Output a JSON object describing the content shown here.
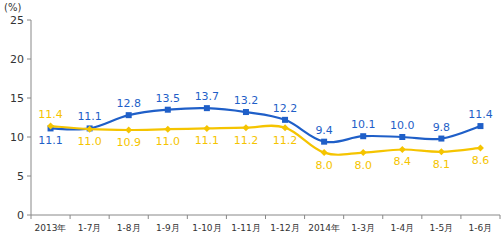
{
  "chart_data": {
    "type": "line",
    "y_label": "(%)",
    "categories": [
      "2013年",
      "1-7月",
      "1-8月",
      "1-9月",
      "1-10月",
      "1-11月",
      "1-12月",
      "2014年",
      "1-3月",
      "1-4月",
      "1-5月",
      "1-6月"
    ],
    "series": [
      {
        "color": "#1f5fc8",
        "marker": "square",
        "line_style": "solid",
        "values": [
          11.1,
          11.1,
          12.8,
          13.5,
          13.7,
          13.2,
          12.2,
          9.4,
          10.1,
          10.0,
          9.8,
          11.4
        ],
        "value_labels": [
          "11.1",
          "11.1",
          "12.8",
          "13.5",
          "13.7",
          "13.2",
          "12.2",
          "9.4",
          "10.1",
          "10.0",
          "9.8",
          "11.4"
        ]
      },
      {
        "color": "#f5c400",
        "marker": "diamond",
        "line_style": "solid",
        "values": [
          11.4,
          11.0,
          10.9,
          11.0,
          11.1,
          11.2,
          11.2,
          8.0,
          8.0,
          8.4,
          8.1,
          8.6
        ],
        "value_labels": [
          "11.4",
          "11.0",
          "10.9",
          "11.0",
          "11.1",
          "11.2",
          "11.2",
          "8.0",
          "8.0",
          "8.4",
          "8.1",
          "8.6"
        ]
      }
    ],
    "ylim": [
      0,
      25
    ],
    "yticks": [
      0,
      5,
      10,
      15,
      20,
      25
    ],
    "grid": false,
    "data_labels": true
  }
}
